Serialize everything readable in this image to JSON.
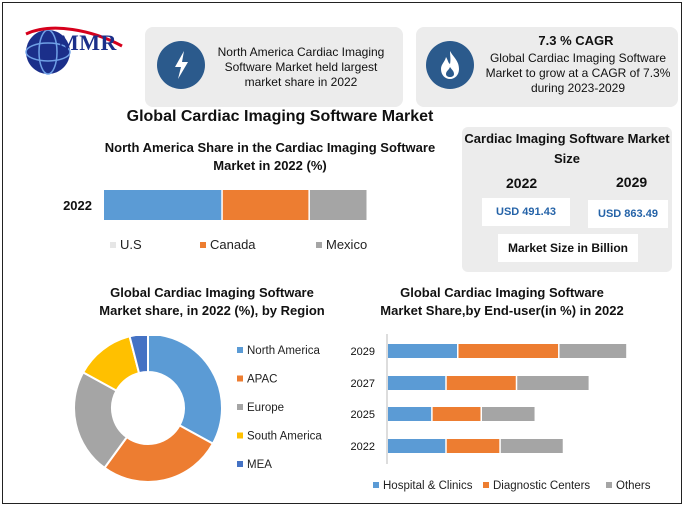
{
  "brand": {
    "logo_text": "MMR"
  },
  "info": {
    "box1_text": "North America Cardiac Imaging Software Market held largest market share in 2022",
    "box1_icon": "lightning-icon",
    "box2_title": "7.3 % CAGR",
    "box2_text": "Global Cardiac Imaging Software Market to grow at a CAGR of 7.3% during 2023-2029",
    "box2_icon": "flame-icon"
  },
  "main_title": "Global Cardiac Imaging Software Market",
  "market_size": {
    "title": "Cardiac Imaging Software Market Size",
    "year1": "2022",
    "year2": "2029",
    "value1": "USD 491.43",
    "value2": "USD 863.49",
    "unit": "Market Size in Billion"
  },
  "colors": {
    "blue": "#5b9bd5",
    "orange": "#ed7d31",
    "gray": "#a5a5a5",
    "yellow": "#ffc000",
    "navy": "#4472c4"
  },
  "chart_data": [
    {
      "type": "bar",
      "orientation": "horizontal",
      "stacked": true,
      "title": "North America Share in the Cardiac Imaging Software Market in 2022 (%)",
      "categories": [
        "2022"
      ],
      "series": [
        {
          "name": "U.S",
          "values": [
            45
          ]
        },
        {
          "name": "Canada",
          "values": [
            33
          ]
        },
        {
          "name": "Mexico",
          "values": [
            22
          ]
        }
      ],
      "legend": "bottom"
    },
    {
      "type": "pie",
      "donut": true,
      "title": "Global Cardiac Imaging Software Market share, in 2022 (%), by Region",
      "labels": [
        "North America",
        "APAC",
        "Europe",
        "South America",
        "MEA"
      ],
      "values": [
        33,
        27,
        23,
        13,
        4
      ],
      "legend": "right"
    },
    {
      "type": "bar",
      "orientation": "horizontal",
      "stacked": true,
      "title": "Global Cardiac Imaging Software Market Share,by End-user(in %) in 2022",
      "categories": [
        "2029",
        "2027",
        "2025",
        "2022"
      ],
      "series": [
        {
          "name": "Hospital & Clinics",
          "values": [
            30,
            25,
            19,
            25
          ]
        },
        {
          "name": "Diagnostic Centers",
          "values": [
            43,
            30,
            21,
            23
          ]
        },
        {
          "name": "Others",
          "values": [
            29,
            31,
            23,
            27
          ]
        }
      ],
      "legend": "bottom"
    }
  ]
}
